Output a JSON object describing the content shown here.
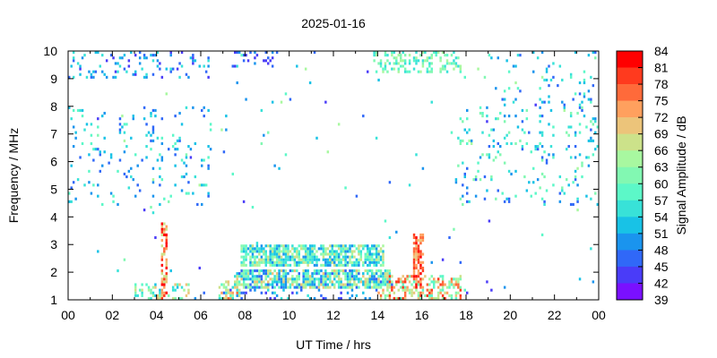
{
  "chart_data": {
    "type": "heatmap",
    "title": "2025-01-16",
    "xlabel": "UT Time / hrs",
    "ylabel": "Frequency / MHz",
    "xlim": [
      0,
      24
    ],
    "ylim": [
      1,
      10
    ],
    "x_ticks": [
      "00",
      "02",
      "04",
      "06",
      "08",
      "10",
      "12",
      "14",
      "16",
      "18",
      "20",
      "22",
      "00"
    ],
    "y_ticks": [
      "1",
      "2",
      "3",
      "4",
      "5",
      "6",
      "7",
      "8",
      "9",
      "10"
    ],
    "cell_step": {
      "time_hrs": 0.1,
      "freq_mhz": 0.1
    },
    "colorbar": {
      "label": "Signal Amplitude / dB",
      "range": [
        39,
        84
      ],
      "ticks": [
        "84",
        "81",
        "78",
        "75",
        "72",
        "69",
        "66",
        "63",
        "60",
        "57",
        "54",
        "51",
        "48",
        "45",
        "42",
        "39"
      ],
      "colors": [
        "#ff0000",
        "#ff3a1e",
        "#ff6a3a",
        "#ffa05e",
        "#ecc47a",
        "#cce28a",
        "#a8f8a0",
        "#82f8b2",
        "#5cf8c8",
        "#38e2d8",
        "#18c2e6",
        "#1a94ee",
        "#3068f8",
        "#4a3cf8",
        "#7a10ff"
      ]
    },
    "regions": [
      {
        "name": "night-early-scatter",
        "t": [
          0,
          6.5
        ],
        "f": [
          4.4,
          8
        ],
        "density": 0.07,
        "amp": [
          45,
          60
        ]
      },
      {
        "name": "night-early-top",
        "t": [
          0,
          6.5
        ],
        "f": [
          9,
          10
        ],
        "density": 0.12,
        "amp": [
          42,
          57
        ]
      },
      {
        "name": "day-top-spots",
        "t": [
          7,
          9.5
        ],
        "f": [
          9.4,
          10
        ],
        "density": 0.15,
        "amp": [
          42,
          50
        ]
      },
      {
        "name": "evening-top",
        "t": [
          13.8,
          17.8
        ],
        "f": [
          9.2,
          10
        ],
        "density": 0.35,
        "amp": [
          54,
          66
        ]
      },
      {
        "name": "night-late-scatter",
        "t": [
          17.5,
          24
        ],
        "f": [
          4.4,
          8
        ],
        "density": 0.08,
        "amp": [
          45,
          63
        ]
      },
      {
        "name": "night-late-top",
        "t": [
          19,
          24
        ],
        "f": [
          8,
          10
        ],
        "density": 0.06,
        "amp": [
          45,
          60
        ]
      },
      {
        "name": "day-band-upper",
        "t": [
          7.8,
          14.3
        ],
        "f": [
          2.2,
          2.95
        ],
        "density": 0.75,
        "amp": [
          48,
          69
        ]
      },
      {
        "name": "day-band-lower",
        "t": [
          7.5,
          14.7
        ],
        "f": [
          1.4,
          2.1
        ],
        "density": 0.75,
        "amp": [
          45,
          72
        ]
      },
      {
        "name": "day-band-bottom",
        "t": [
          7,
          14
        ],
        "f": [
          1,
          1.4
        ],
        "density": 0.15,
        "amp": [
          42,
          57
        ]
      },
      {
        "name": "morning-rise",
        "t": [
          6.8,
          8
        ],
        "f": [
          1,
          1.8
        ],
        "density": 0.5,
        "amp": [
          54,
          78
        ]
      },
      {
        "name": "spike-04h",
        "t": [
          4.2,
          4.5
        ],
        "f": [
          1,
          3.8
        ],
        "density": 0.6,
        "amp": [
          66,
          84
        ]
      },
      {
        "name": "pre-dawn-low",
        "t": [
          3,
          5.5
        ],
        "f": [
          1,
          1.6
        ],
        "density": 0.35,
        "amp": [
          51,
          72
        ]
      },
      {
        "name": "spike-16h",
        "t": [
          15.6,
          16.1
        ],
        "f": [
          1.4,
          3.4
        ],
        "density": 0.7,
        "amp": [
          69,
          84
        ]
      },
      {
        "name": "evening-low",
        "t": [
          14,
          17.8
        ],
        "f": [
          1,
          1.9
        ],
        "density": 0.5,
        "amp": [
          57,
          81
        ]
      },
      {
        "name": "midday-vhf",
        "t": [
          0,
          24
        ],
        "f": [
          1,
          10
        ],
        "density": 0.006,
        "amp": [
          42,
          66
        ]
      }
    ]
  }
}
